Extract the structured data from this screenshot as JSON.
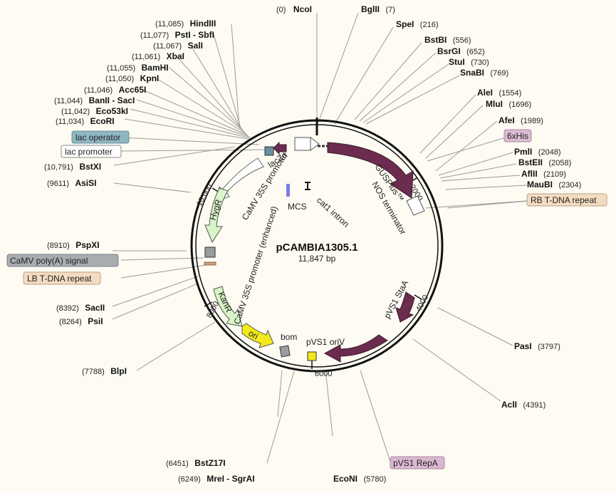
{
  "plasmid": {
    "name": "pCAMBIA1305.1",
    "size_label": "11,847 bp",
    "length": 11847
  },
  "colors": {
    "gene_dark": "#6b2c4f",
    "marker_green": "#d8f5c8",
    "ori_yellow": "#f2ea1a",
    "promoter_white": "#ffffff",
    "bom_gray": "#9a9c9e",
    "lac_operator": "#8eb6c3",
    "polyA_gray": "#a9adb1",
    "tdna_tan": "#f3dcc0",
    "his_pink": "#dcbcd2",
    "repA_pink": "#dab7d0",
    "mcs_blue": "#7c7ce8"
  },
  "ticks": [
    {
      "label": "2000"
    },
    {
      "label": "4000"
    },
    {
      "label": "6000"
    },
    {
      "label": "8000"
    },
    {
      "label": "10,000"
    }
  ],
  "sites": [
    {
      "pos": "(0)",
      "name": "NcoI"
    },
    {
      "pos": "(7)",
      "name": "BglII"
    },
    {
      "pos": "(216)",
      "name": "SpeI"
    },
    {
      "pos": "(556)",
      "name": "BstBI"
    },
    {
      "pos": "(652)",
      "name": "BsrGI"
    },
    {
      "pos": "(730)",
      "name": "StuI"
    },
    {
      "pos": "(769)",
      "name": "SnaBI"
    },
    {
      "pos": "(1554)",
      "name": "AleI"
    },
    {
      "pos": "(1696)",
      "name": "MluI"
    },
    {
      "pos": "(1989)",
      "name": "AfeI"
    },
    {
      "pos": "(2048)",
      "name": "PmlI"
    },
    {
      "pos": "(2058)",
      "name": "BstEII"
    },
    {
      "pos": "(2109)",
      "name": "AflII"
    },
    {
      "pos": "(2304)",
      "name": "MauBI"
    },
    {
      "pos": "(3797)",
      "name": "PasI"
    },
    {
      "pos": "(4391)",
      "name": "AclI"
    },
    {
      "pos": "(5780)",
      "name": "EcoNI"
    },
    {
      "pos": "(6249)",
      "name": "MreI - SgrAI"
    },
    {
      "pos": "(6451)",
      "name": "BstZ17I"
    },
    {
      "pos": "(7788)",
      "name": "BlpI"
    },
    {
      "pos": "(8264)",
      "name": "PsiI"
    },
    {
      "pos": "(8392)",
      "name": "SacII"
    },
    {
      "pos": "(8910)",
      "name": "PspXI"
    },
    {
      "pos": "(9611)",
      "name": "AsiSI"
    },
    {
      "pos": "(10,791)",
      "name": "BstXI"
    },
    {
      "pos": "(11,034)",
      "name": "EcoRI"
    },
    {
      "pos": "(11,042)",
      "name": "Eco53kI"
    },
    {
      "pos": "(11,044)",
      "name": "BanII - SacI"
    },
    {
      "pos": "(11,046)",
      "name": "Acc65I"
    },
    {
      "pos": "(11,050)",
      "name": "KpnI"
    },
    {
      "pos": "(11,055)",
      "name": "BamHI"
    },
    {
      "pos": "(11,061)",
      "name": "XbaI"
    },
    {
      "pos": "(11,067)",
      "name": "SalI"
    },
    {
      "pos": "(11,077)",
      "name": "PstI - SbfI"
    },
    {
      "pos": "(11,085)",
      "name": "HindIII"
    }
  ],
  "features": {
    "gusplus": "GUSPlus™",
    "nos_terminator": "NOS terminator",
    "cat1_intron": "cat1 intron",
    "mcs": "MCS",
    "lacz": "lacZα",
    "camv_35s_promoter": "CaMV 35S promoter",
    "camv_35s_enhanced": "CaMV 35S promoter (enhanced)",
    "hygr": "HygR",
    "kanr": "KanR",
    "ori": "ori",
    "bom": "bom",
    "pvs1_oriv": "pVS1 oriV",
    "pvs1_staa": "pVS1 StaA"
  },
  "boxed_labels": {
    "lac_operator": "lac operator",
    "lac_promoter": "lac promoter",
    "his_tag": "6xHis",
    "rb_tdna": "RB T-DNA repeat",
    "camv_polyA": "CaMV poly(A) signal",
    "lb_tdna": "LB T-DNA repeat",
    "pvs1_repA": "pVS1 RepA"
  }
}
